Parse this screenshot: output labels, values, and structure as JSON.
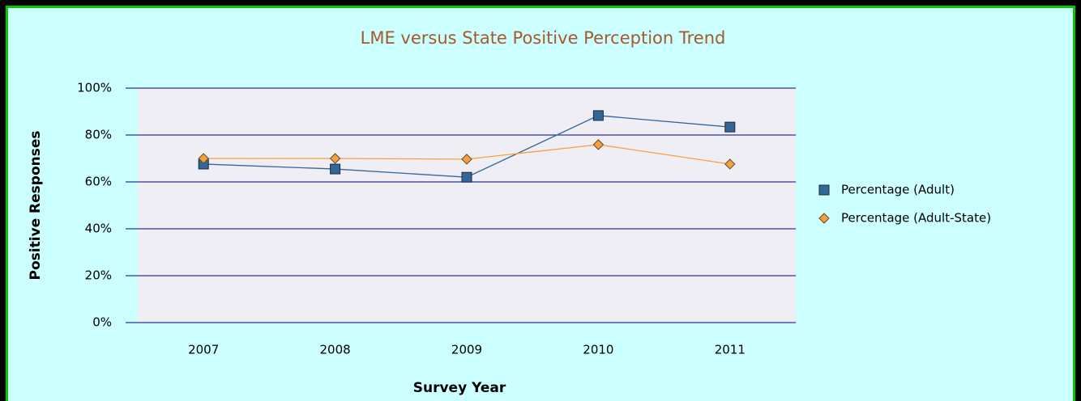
{
  "chart_data": {
    "type": "line",
    "title": "LME versus State Positive Perception Trend",
    "x_label": "Survey Year",
    "y_label": "Positive Responses",
    "categories": [
      "2007",
      "2008",
      "2009",
      "2010",
      "2011"
    ],
    "series": [
      {
        "name": "Percentage (Adult)",
        "color": "#336699",
        "marker": "square",
        "values": [
          67.6,
          65.5,
          62,
          88.3,
          83.4
        ]
      },
      {
        "name": "Percentage (Adult-State)",
        "color": "#f5a040",
        "marker": "diamond",
        "values": [
          70,
          70,
          69.7,
          75.9,
          67.6
        ]
      }
    ],
    "ylim": [
      0,
      100
    ],
    "yticks": [
      {
        "value": 0,
        "label": "0%"
      },
      {
        "value": 20,
        "label": "20%"
      },
      {
        "value": 40,
        "label": "40%"
      },
      {
        "value": 60,
        "label": "60%"
      },
      {
        "value": 80,
        "label": "80%"
      },
      {
        "value": 100,
        "label": "100%"
      }
    ],
    "grid": true,
    "legend": "right"
  }
}
